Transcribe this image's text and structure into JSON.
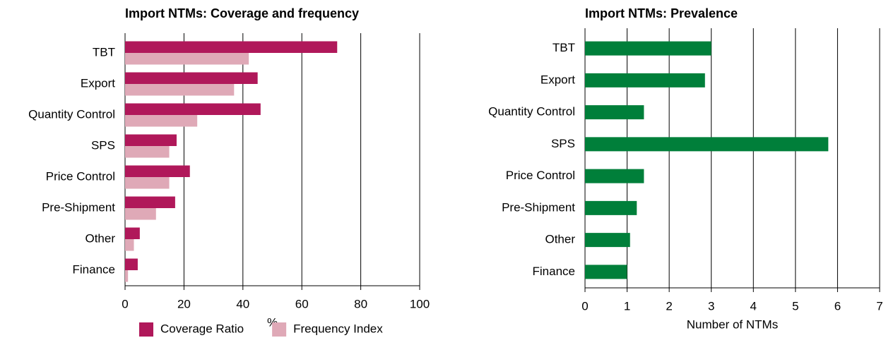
{
  "chart_data": [
    {
      "type": "bar",
      "orientation": "horizontal",
      "title": "Import NTMs: Coverage and frequency",
      "categories": [
        "TBT",
        "Export",
        "Quantity Control",
        "SPS",
        "Price Control",
        "Pre-Shipment",
        "Other",
        "Finance"
      ],
      "series": [
        {
          "name": "Coverage Ratio",
          "color": "#b0185a",
          "values": [
            72,
            45,
            46,
            17.5,
            22,
            17,
            5,
            4.3
          ]
        },
        {
          "name": "Frequency Index",
          "color": "#dfa9b7",
          "values": [
            42,
            37,
            24.5,
            15,
            15,
            10.5,
            3,
            1
          ]
        }
      ],
      "xlim": [
        0,
        100
      ],
      "xticks": [
        0,
        20,
        40,
        60,
        80,
        100
      ],
      "x_label": "%",
      "grid": true,
      "legend": "bottom"
    },
    {
      "type": "bar",
      "orientation": "horizontal",
      "title": "Import NTMs: Prevalence",
      "categories": [
        "TBT",
        "Export",
        "Quantity Control",
        "SPS",
        "Price Control",
        "Pre-Shipment",
        "Other",
        "Finance"
      ],
      "values": [
        3.0,
        2.85,
        1.4,
        5.78,
        1.4,
        1.23,
        1.07,
        1.0
      ],
      "color": "#007f3a",
      "xlim": [
        0,
        7
      ],
      "xticks": [
        0,
        1,
        2,
        3,
        4,
        5,
        6,
        7
      ],
      "x_label": "Number of NTMs",
      "grid": true
    }
  ]
}
